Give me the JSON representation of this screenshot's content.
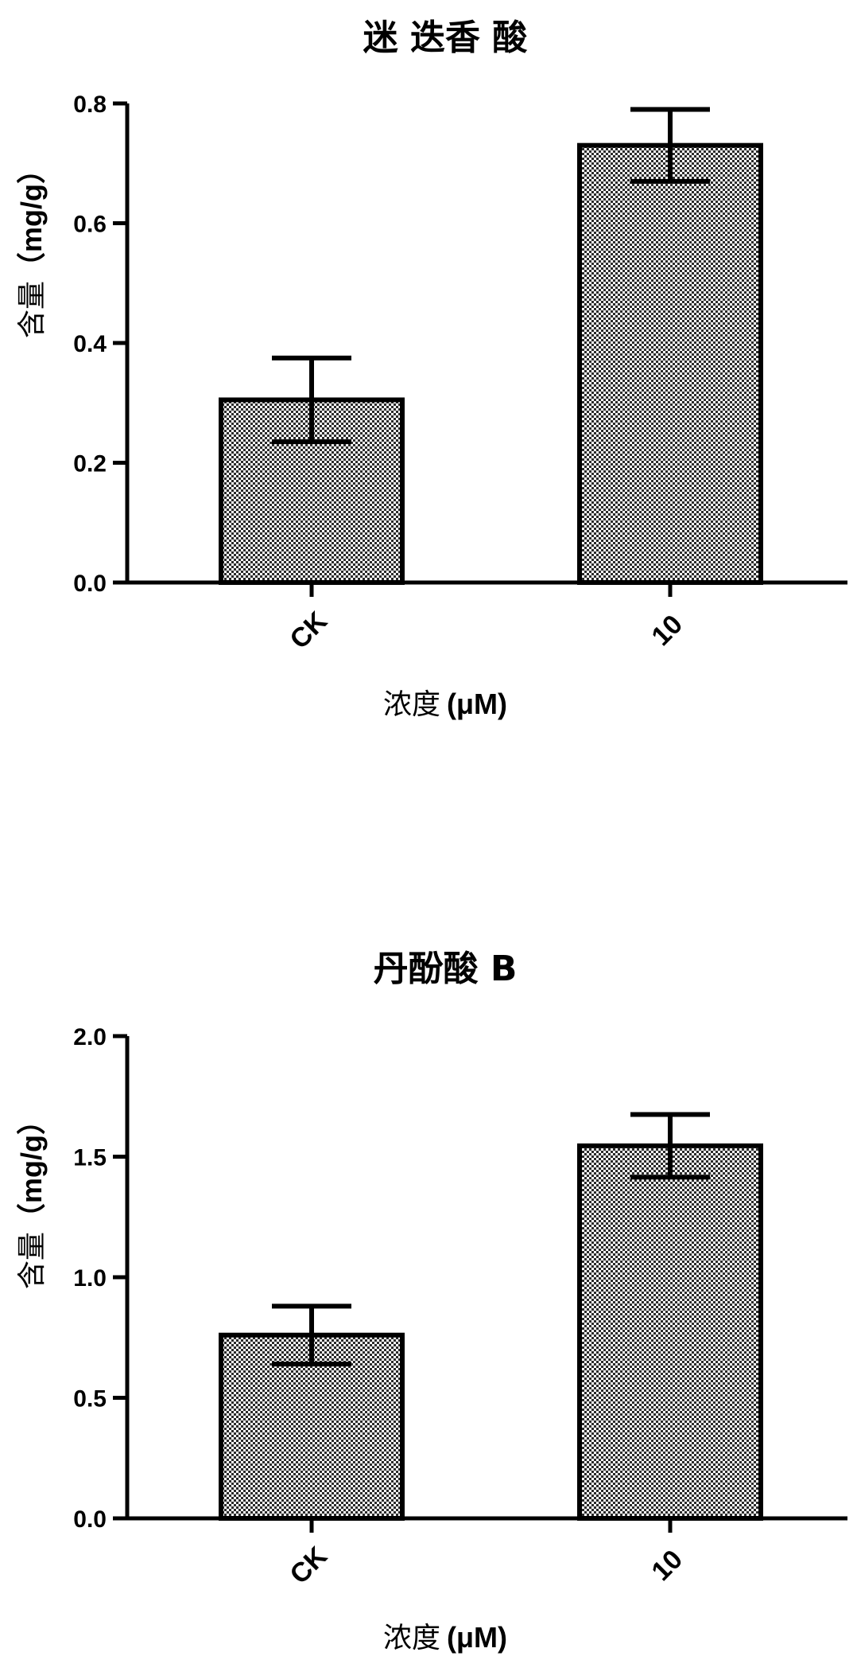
{
  "chart_data": [
    {
      "type": "bar",
      "title": "迷 迭香 酸",
      "xlabel_prefix": "浓度",
      "xlabel_unit": "(μM)",
      "ylabel_prefix": "含量",
      "ylabel_unit": "（mg/g）",
      "categories": [
        "CK",
        "10"
      ],
      "values": [
        0.305,
        0.73
      ],
      "errors": [
        0.07,
        0.06
      ],
      "ylim": [
        0.0,
        0.8
      ],
      "yticks": [
        0.0,
        0.2,
        0.4,
        0.6,
        0.8
      ],
      "ytick_labels": [
        "0.0",
        "0.2",
        "0.4",
        "0.6",
        "0.8"
      ],
      "grid": false
    },
    {
      "type": "bar",
      "title": "丹酚酸 B",
      "xlabel_prefix": "浓度",
      "xlabel_unit": "(μM)",
      "ylabel_prefix": "含量",
      "ylabel_unit": "（mg/g）",
      "categories": [
        "CK",
        "10"
      ],
      "values": [
        0.76,
        1.545
      ],
      "errors": [
        0.12,
        0.13
      ],
      "ylim": [
        0.0,
        2.0
      ],
      "yticks": [
        0.0,
        0.5,
        1.0,
        1.5,
        2.0
      ],
      "ytick_labels": [
        "0.0",
        "0.5",
        "1.0",
        "1.5",
        "2.0"
      ],
      "grid": false
    }
  ],
  "colors": {
    "axis": "#000000",
    "bar_stroke": "#000000",
    "pattern_dark": "#2b2b2b",
    "pattern_light": "#ffffff"
  }
}
